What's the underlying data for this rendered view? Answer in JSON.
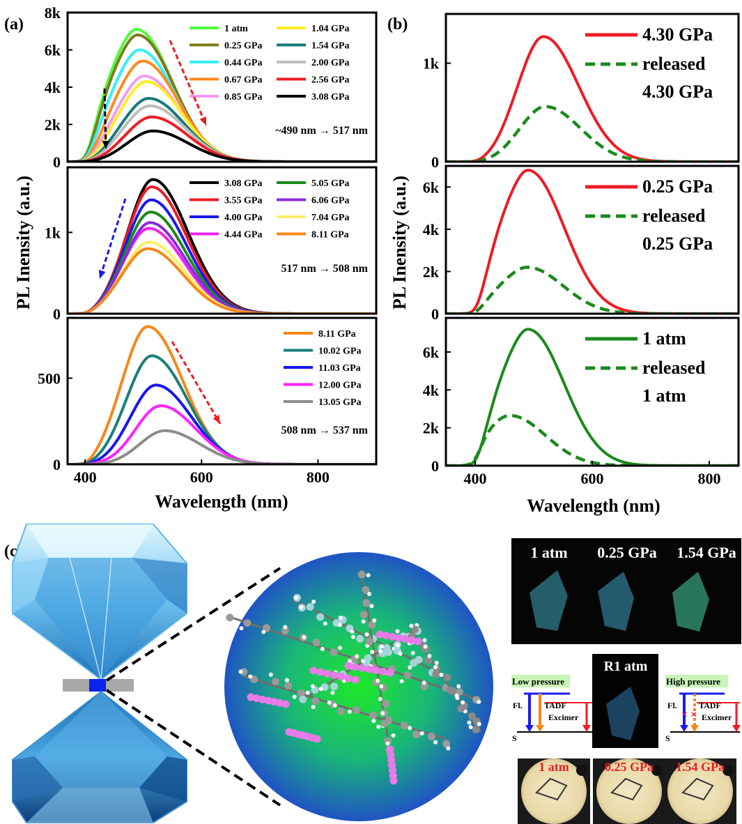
{
  "panel_labels": {
    "a": "(a)",
    "b": "(b)",
    "c": "(c)"
  },
  "colors": {
    "1 atm": "#4cff3a",
    "0.25 GPa": "#7d7a1c",
    "0.44 GPa": "#35eef5",
    "0.67 GPa": "#ff8a1e",
    "0.85 GPa": "#f59af0",
    "1.04 GPa": "#ffee22",
    "1.54 GPa": "#167a78",
    "2.00 GPa": "#bdbdbd",
    "2.56 GPa": "#ee1c24",
    "3.08 GPa": "#000000",
    "3.55 GPa": "#ee1c24",
    "4.00 GPa": "#1a1aee",
    "4.44 GPa": "#ee22ee",
    "5.05 GPa": "#1b8a1b",
    "6.06 GPa": "#8a2be2",
    "7.04 GPa": "#ffee66",
    "8.11 GPa": "#f7871b",
    "10.02 GPa": "#1a7f7a",
    "11.03 GPa": "#1616ee",
    "12.00 GPa": "#ff22ff",
    "13.05 GPa": "#8c8c8c",
    "red": "#ee1c24",
    "green": "#1b8a1b"
  },
  "chart_data": [
    {
      "id": "a1",
      "type": "line",
      "ylabel": "PL Inensity (a.u.)",
      "xlim": [
        370,
        900
      ],
      "ylim": [
        0,
        8000
      ],
      "yticks": [
        0,
        2000,
        4000,
        6000,
        8000
      ],
      "ytick_labels": [
        "0",
        "2k",
        "4k",
        "6k",
        "8k"
      ],
      "annotation": "~490 nm → 517 nm",
      "legend_columns": 2,
      "series": [
        {
          "name": "1 atm",
          "peak": 490,
          "amp": 7100,
          "shoulder": 0.55,
          "style": "solid"
        },
        {
          "name": "0.25 GPa",
          "peak": 492,
          "amp": 6800,
          "shoulder": 0.55,
          "style": "solid"
        },
        {
          "name": "0.44 GPa",
          "peak": 495,
          "amp": 6000,
          "shoulder": 0.5,
          "style": "solid"
        },
        {
          "name": "0.67 GPa",
          "peak": 500,
          "amp": 5400,
          "shoulder": 0.45,
          "style": "solid"
        },
        {
          "name": "0.85 GPa",
          "peak": 503,
          "amp": 4600,
          "shoulder": 0.4,
          "style": "solid"
        },
        {
          "name": "1.04 GPa",
          "peak": 506,
          "amp": 4300,
          "shoulder": 0.35,
          "style": "solid"
        },
        {
          "name": "1.54 GPa",
          "peak": 510,
          "amp": 3400,
          "shoulder": 0.3,
          "style": "solid"
        },
        {
          "name": "2.00 GPa",
          "peak": 512,
          "amp": 3000,
          "shoulder": 0.25,
          "style": "solid"
        },
        {
          "name": "2.56 GPa",
          "peak": 515,
          "amp": 2400,
          "shoulder": 0.2,
          "style": "solid"
        },
        {
          "name": "3.08 GPa",
          "peak": 517,
          "amp": 1650,
          "shoulder": 0.15,
          "style": "solid"
        }
      ]
    },
    {
      "id": "a2",
      "type": "line",
      "xlim": [
        370,
        900
      ],
      "ylim": [
        0,
        1800
      ],
      "yticks": [
        0,
        1000
      ],
      "ytick_labels": [
        "0",
        "1k"
      ],
      "annotation": "517 nm → 508 nm",
      "legend_columns": 2,
      "series": [
        {
          "name": "3.08 GPa",
          "peak": 517,
          "amp": 1650,
          "shoulder": 0.15,
          "style": "solid"
        },
        {
          "name": "3.55 GPa",
          "peak": 515,
          "amp": 1560,
          "shoulder": 0.15,
          "style": "solid"
        },
        {
          "name": "4.00 GPa",
          "peak": 514,
          "amp": 1400,
          "shoulder": 0.15,
          "style": "solid"
        },
        {
          "name": "4.44 GPa",
          "peak": 510,
          "amp": 1050,
          "shoulder": 0.15,
          "style": "solid"
        },
        {
          "name": "5.05 GPa",
          "peak": 513,
          "amp": 1250,
          "shoulder": 0.15,
          "style": "solid"
        },
        {
          "name": "6.06 GPa",
          "peak": 512,
          "amp": 1120,
          "shoulder": 0.15,
          "style": "solid"
        },
        {
          "name": "7.04 GPa",
          "peak": 510,
          "amp": 880,
          "shoulder": 0.15,
          "style": "solid"
        },
        {
          "name": "8.11 GPa",
          "peak": 508,
          "amp": 800,
          "shoulder": 0.15,
          "style": "solid"
        }
      ]
    },
    {
      "id": "a3",
      "type": "line",
      "xlabel": "Wavelength (nm)",
      "xlim": [
        370,
        900
      ],
      "ylim": [
        0,
        850
      ],
      "xticks": [
        400,
        600,
        800
      ],
      "xtick_labels": [
        "400",
        "600",
        "800"
      ],
      "yticks": [
        0,
        500
      ],
      "ytick_labels": [
        "0",
        "500"
      ],
      "annotation": "508 nm → 537 nm",
      "legend_columns": 1,
      "series": [
        {
          "name": "8.11 GPa",
          "peak": 508,
          "amp": 800,
          "shoulder": 0.15,
          "style": "solid"
        },
        {
          "name": "10.02 GPa",
          "peak": 515,
          "amp": 630,
          "shoulder": 0.1,
          "style": "solid"
        },
        {
          "name": "11.03 GPa",
          "peak": 522,
          "amp": 460,
          "shoulder": 0.1,
          "style": "solid"
        },
        {
          "name": "12.00 GPa",
          "peak": 530,
          "amp": 340,
          "shoulder": 0.05,
          "style": "solid"
        },
        {
          "name": "13.05 GPa",
          "peak": 537,
          "amp": 195,
          "shoulder": 0.05,
          "style": "solid"
        }
      ]
    },
    {
      "id": "b1",
      "type": "line",
      "xlim": [
        350,
        850
      ],
      "ylim": [
        0,
        1500
      ],
      "yticks": [
        0,
        1000
      ],
      "ytick_labels": [
        "0",
        "1k"
      ],
      "series": [
        {
          "name": "4.30 GPa",
          "color": "#ee1c24",
          "peak": 517,
          "amp": 1270,
          "shoulder": 0.15,
          "style": "solid"
        },
        {
          "name": "released 4.30 GPa",
          "color": "#1b8a1b",
          "peak": 520,
          "amp": 560,
          "shoulder": 0.1,
          "style": "dash"
        }
      ],
      "legend": [
        [
          "4.30 GPa"
        ],
        [
          "released",
          "4.30 GPa"
        ]
      ]
    },
    {
      "id": "b2",
      "type": "line",
      "ylabel": "PL Inensity (a.u.)",
      "xlim": [
        350,
        850
      ],
      "ylim": [
        0,
        7000
      ],
      "yticks": [
        0,
        2000,
        4000,
        6000
      ],
      "ytick_labels": [
        "0",
        "2k",
        "4k",
        "6k"
      ],
      "series": [
        {
          "name": "0.25 GPa",
          "color": "#ee1c24",
          "peak": 492,
          "amp": 6800,
          "shoulder": 0.55,
          "style": "solid"
        },
        {
          "name": "released 0.25 GPa",
          "color": "#1b8a1b",
          "peak": 490,
          "amp": 2200,
          "shoulder": 0.4,
          "style": "dash"
        }
      ],
      "legend": [
        [
          "0.25 GPa"
        ],
        [
          "released",
          "0.25 GPa"
        ]
      ]
    },
    {
      "id": "b3",
      "type": "line",
      "xlabel": "Wavelength (nm)",
      "xlim": [
        350,
        850
      ],
      "ylim": [
        0,
        7800
      ],
      "xticks": [
        400,
        600,
        800
      ],
      "xtick_labels": [
        "400",
        "600",
        "800"
      ],
      "yticks": [
        0,
        2000,
        4000,
        6000
      ],
      "ytick_labels": [
        "0",
        "2k",
        "4k",
        "6k"
      ],
      "series": [
        {
          "name": "1 atm",
          "color": "#1b8a1b",
          "peak": 492,
          "amp": 7200,
          "shoulder": 0.55,
          "style": "solid"
        },
        {
          "name": "released 1 atm",
          "color": "#1b8a1b",
          "peak": 460,
          "amp": 2650,
          "shoulder": 0.3,
          "style": "dash"
        }
      ],
      "legend": [
        [
          "1 atm"
        ],
        [
          "released",
          "1 atm"
        ]
      ]
    }
  ],
  "panel_c": {
    "photo_labels": [
      "1 atm",
      "0.25 GPa",
      "1.54 GPa"
    ],
    "released_label": "R1 atm",
    "diagram_low": {
      "title": "Low pressure",
      "fl": "Fl.",
      "tadf": "TADF",
      "excimer": "Excimer",
      "ground": "S"
    },
    "diagram_high": {
      "title": "High pressure",
      "fl": "Fl.",
      "tadf": "TADF",
      "excimer": "Excimer",
      "ground": "S"
    },
    "micro_labels": [
      "1 atm",
      "0.25 GPa",
      "1.54 GPa"
    ]
  }
}
